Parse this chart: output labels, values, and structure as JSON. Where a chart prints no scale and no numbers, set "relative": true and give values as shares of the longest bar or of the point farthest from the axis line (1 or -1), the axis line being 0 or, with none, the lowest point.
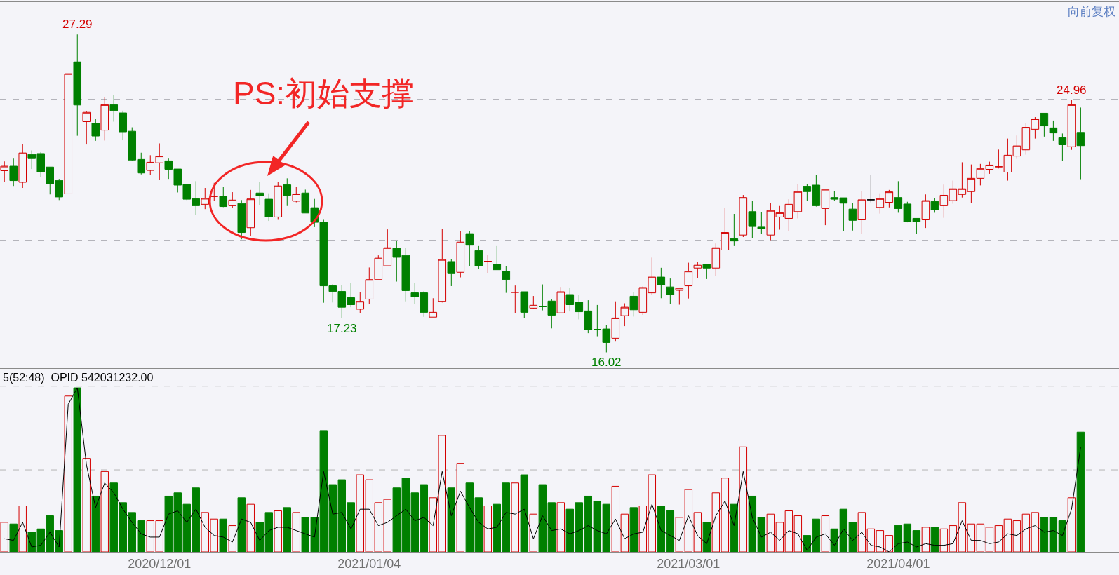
{
  "chart_data": [
    {
      "type": "candlestick",
      "categories": [
        null,
        null,
        null,
        null,
        null,
        null,
        null,
        null,
        null,
        null,
        null,
        null,
        null,
        null,
        null,
        null,
        null,
        "2020/12/01",
        null,
        null,
        null,
        null,
        null,
        null,
        null,
        null,
        null,
        null,
        null,
        null,
        null,
        null,
        null,
        null,
        null,
        null,
        null,
        null,
        null,
        null,
        "2021/01/04",
        null,
        null,
        null,
        null,
        null,
        null,
        null,
        null,
        null,
        null,
        null,
        null,
        null,
        null,
        null,
        null,
        null,
        null,
        null,
        null,
        null,
        null,
        null,
        null,
        null,
        null,
        null,
        null,
        null,
        null,
        null,
        null,
        null,
        null,
        "2021/03/01",
        null,
        null,
        null,
        null,
        null,
        null,
        null,
        null,
        null,
        null,
        null,
        null,
        null,
        null,
        null,
        null,
        null,
        null,
        null,
        null,
        null,
        null,
        "2021/04/01",
        null,
        null,
        null,
        null,
        null,
        null,
        null,
        null,
        null,
        null,
        null,
        null,
        null,
        null,
        null,
        null,
        null,
        null,
        null,
        null
      ],
      "ohlc": [
        [
          22.46,
          22.79,
          22.07,
          22.62
        ],
        [
          22.62,
          22.89,
          21.92,
          22.11
        ],
        [
          22.05,
          23.4,
          21.85,
          23.09
        ],
        [
          23.04,
          23.18,
          22.52,
          22.89
        ],
        [
          23.07,
          23.12,
          22.24,
          22.41
        ],
        [
          22.59,
          22.59,
          21.62,
          21.99
        ],
        [
          22.12,
          22.17,
          21.42,
          21.53
        ],
        [
          21.64,
          25.9,
          21.64,
          25.9
        ],
        [
          26.32,
          27.29,
          23.7,
          24.79
        ],
        [
          24.2,
          24.57,
          23.39,
          24.53
        ],
        [
          24.15,
          24.3,
          23.52,
          23.69
        ],
        [
          23.9,
          25.07,
          23.53,
          24.8
        ],
        [
          24.8,
          25.14,
          24.2,
          24.59
        ],
        [
          24.51,
          24.59,
          23.54,
          23.84
        ],
        [
          23.86,
          24.0,
          22.82,
          22.84
        ],
        [
          22.86,
          23.1,
          22.33,
          22.38
        ],
        [
          22.47,
          23.01,
          22.3,
          22.76
        ],
        [
          22.74,
          23.43,
          22.13,
          22.98
        ],
        [
          22.81,
          22.89,
          22.17,
          22.51
        ],
        [
          22.52,
          22.52,
          21.69,
          21.95
        ],
        [
          21.98,
          21.98,
          21.42,
          21.45
        ],
        [
          21.47,
          22.09,
          20.89,
          21.22
        ],
        [
          21.27,
          21.85,
          21.1,
          21.48
        ],
        [
          21.55,
          22.03,
          21.4,
          21.55
        ],
        [
          21.56,
          21.89,
          21.17,
          21.19
        ],
        [
          21.22,
          21.7,
          21.13,
          21.42
        ],
        [
          21.3,
          21.42,
          20.03,
          20.27
        ],
        [
          20.44,
          21.78,
          20.16,
          21.46
        ],
        [
          21.67,
          22.06,
          21.25,
          21.57
        ],
        [
          21.45,
          21.66,
          20.68,
          20.82
        ],
        [
          20.82,
          22.07,
          20.72,
          21.92
        ],
        [
          21.96,
          22.19,
          21.21,
          21.59
        ],
        [
          21.38,
          21.88,
          21.34,
          21.64
        ],
        [
          21.67,
          21.79,
          20.96,
          20.96
        ],
        [
          21.15,
          21.46,
          20.46,
          20.63
        ],
        [
          20.63,
          20.72,
          17.78,
          18.38
        ],
        [
          18.38,
          18.44,
          17.79,
          18.18
        ],
        [
          18.18,
          18.41,
          17.23,
          17.62
        ],
        [
          17.96,
          18.49,
          17.62,
          17.71
        ],
        [
          17.55,
          18.17,
          17.4,
          17.83
        ],
        [
          17.91,
          19.03,
          17.74,
          18.6
        ],
        [
          18.6,
          19.46,
          18.6,
          19.36
        ],
        [
          19.09,
          20.38,
          19.07,
          19.73
        ],
        [
          19.71,
          19.97,
          18.53,
          19.39
        ],
        [
          19.46,
          19.73,
          17.83,
          18.21
        ],
        [
          18.13,
          18.49,
          17.74,
          17.99
        ],
        [
          18.13,
          18.19,
          17.28,
          17.44
        ],
        [
          17.27,
          17.94,
          17.27,
          17.44
        ],
        [
          17.83,
          20.4,
          17.79,
          19.31
        ],
        [
          19.24,
          19.33,
          18.37,
          18.81
        ],
        [
          18.86,
          20.31,
          18.68,
          19.93
        ],
        [
          20.23,
          20.33,
          19.09,
          19.82
        ],
        [
          19.63,
          19.79,
          18.98,
          19.08
        ],
        [
          19.25,
          19.48,
          18.84,
          19.25
        ],
        [
          19.14,
          19.79,
          18.95,
          18.95
        ],
        [
          18.89,
          19.09,
          18.13,
          18.6
        ],
        [
          18.15,
          18.39,
          17.4,
          18.15
        ],
        [
          18.17,
          18.17,
          17.25,
          17.44
        ],
        [
          17.59,
          18.02,
          17.55,
          17.69
        ],
        [
          17.64,
          18.43,
          17.51,
          17.64
        ],
        [
          17.84,
          17.92,
          16.87,
          17.34
        ],
        [
          17.42,
          18.34,
          17.4,
          18.17
        ],
        [
          18.07,
          18.32,
          17.47,
          17.71
        ],
        [
          17.8,
          18.07,
          17.19,
          17.46
        ],
        [
          17.49,
          17.87,
          16.7,
          16.82
        ],
        [
          16.84,
          17.7,
          16.59,
          16.84
        ],
        [
          16.85,
          16.99,
          16.02,
          16.37
        ],
        [
          16.52,
          17.83,
          16.4,
          17.24
        ],
        [
          17.32,
          17.76,
          16.95,
          17.62
        ],
        [
          18.01,
          18.17,
          17.29,
          17.53
        ],
        [
          17.44,
          18.36,
          17.35,
          18.32
        ],
        [
          18.13,
          19.38,
          18.07,
          18.69
        ],
        [
          18.69,
          19.02,
          17.94,
          18.41
        ],
        [
          18.34,
          18.64,
          17.74,
          18.07
        ],
        [
          18.22,
          18.32,
          17.71,
          18.3
        ],
        [
          18.38,
          19.2,
          17.93,
          18.9
        ],
        [
          19.01,
          19.22,
          18.65,
          19.11
        ],
        [
          19.15,
          19.15,
          18.62,
          19.01
        ],
        [
          19.01,
          19.88,
          18.73,
          19.73
        ],
        [
          19.65,
          21.13,
          19.65,
          20.27
        ],
        [
          20.05,
          20.93,
          19.79,
          19.97
        ],
        [
          20.18,
          21.6,
          20.11,
          21.51
        ],
        [
          21.01,
          21.4,
          20.06,
          20.48
        ],
        [
          20.46,
          21.0,
          20.22,
          20.4
        ],
        [
          20.18,
          21.32,
          20.0,
          21.05
        ],
        [
          20.82,
          21.21,
          20.37,
          20.97
        ],
        [
          20.77,
          21.45,
          20.33,
          21.27
        ],
        [
          21.01,
          22.0,
          20.77,
          21.72
        ],
        [
          21.91,
          22.0,
          21.4,
          21.72
        ],
        [
          21.95,
          22.32,
          21.19,
          21.22
        ],
        [
          21.12,
          21.8,
          20.53,
          21.8
        ],
        [
          21.51,
          21.73,
          21.38,
          21.45
        ],
        [
          21.5,
          21.5,
          20.33,
          21.31
        ],
        [
          21.1,
          21.31,
          20.34,
          20.7
        ],
        [
          20.72,
          21.75,
          20.22,
          21.43
        ],
        [
          21.43,
          22.3,
          21.34,
          21.43
        ],
        [
          21.16,
          21.66,
          20.94,
          21.47
        ],
        [
          21.34,
          21.78,
          21.16,
          21.71
        ],
        [
          21.51,
          22.09,
          20.97,
          21.12
        ],
        [
          21.28,
          21.36,
          20.63,
          20.65
        ],
        [
          20.77,
          20.77,
          20.22,
          20.65
        ],
        [
          20.72,
          21.62,
          20.43,
          21.4
        ],
        [
          21.37,
          21.49,
          20.97,
          21.07
        ],
        [
          21.22,
          21.97,
          20.79,
          21.59
        ],
        [
          21.4,
          22.11,
          21.29,
          21.82
        ],
        [
          21.62,
          22.76,
          21.51,
          21.82
        ],
        [
          21.72,
          22.68,
          21.31,
          22.19
        ],
        [
          22.19,
          22.7,
          21.94,
          22.54
        ],
        [
          22.51,
          22.78,
          22.35,
          22.66
        ],
        [
          22.6,
          23.21,
          22.54,
          22.6
        ],
        [
          22.41,
          23.6,
          22.11,
          23.01
        ],
        [
          22.98,
          23.71,
          22.88,
          23.34
        ],
        [
          23.2,
          24.15,
          23.03,
          24.0
        ],
        [
          23.93,
          24.36,
          23.6,
          24.3
        ],
        [
          24.5,
          24.5,
          23.67,
          24.05
        ],
        [
          23.98,
          24.24,
          23.52,
          23.8
        ],
        [
          23.63,
          23.78,
          22.81,
          23.38
        ],
        [
          23.31,
          24.96,
          23.2,
          24.8
        ],
        [
          23.82,
          24.7,
          22.16,
          23.35
        ]
      ],
      "colors": [
        "#d40000",
        "#008000",
        "#d40000",
        "#008000",
        "#008000",
        "#008000",
        "#008000",
        "#d40000",
        "#008000",
        "#d40000",
        "#008000",
        "#d40000",
        "#008000",
        "#008000",
        "#008000",
        "#008000",
        "#d40000",
        "#d40000",
        "#008000",
        "#008000",
        "#008000",
        "#008000",
        "#d40000",
        "#d40000",
        "#008000",
        "#d40000",
        "#008000",
        "#d40000",
        "#008000",
        "#008000",
        "#d40000",
        "#008000",
        "#d40000",
        "#008000",
        "#008000",
        "#008000",
        "#008000",
        "#008000",
        "#008000",
        "#d40000",
        "#d40000",
        "#d40000",
        "#d40000",
        "#008000",
        "#008000",
        "#008000",
        "#008000",
        "#d40000",
        "#d40000",
        "#008000",
        "#d40000",
        "#008000",
        "#008000",
        "#d40000",
        "#008000",
        "#008000",
        "#d40000",
        "#008000",
        "#d40000",
        "#008000",
        "#008000",
        "#d40000",
        "#008000",
        "#008000",
        "#008000",
        "#008000",
        "#008000",
        "#d40000",
        "#d40000",
        "#008000",
        "#d40000",
        "#d40000",
        "#008000",
        "#008000",
        "#d40000",
        "#d40000",
        "#d40000",
        "#008000",
        "#d40000",
        "#d40000",
        "#008000",
        "#d40000",
        "#008000",
        "#008000",
        "#d40000",
        "#d40000",
        "#d40000",
        "#d40000",
        "#008000",
        "#008000",
        "#d40000",
        "#008000",
        "#008000",
        "#008000",
        "#d40000",
        "#000000",
        "#d40000",
        "#d40000",
        "#008000",
        "#008000",
        "#008000",
        "#d40000",
        "#008000",
        "#d40000",
        "#d40000",
        "#d40000",
        "#d40000",
        "#d40000",
        "#d40000",
        "#d40000",
        "#d40000",
        "#d40000",
        "#d40000",
        "#d40000",
        "#008000",
        "#008000",
        "#008000",
        "#d40000",
        "#008000"
      ],
      "ylim": [
        15.46,
        28.44
      ],
      "yticks": [
        {
          "value": 20,
          "label": null
        },
        {
          "value": 25,
          "label": null
        }
      ],
      "grid": "y",
      "tick_labels": false,
      "annotations": [
        "向前复权",
        "PS:初始支撑",
        {
          "text": "27.29",
          "y": 27.29
        },
        {
          "text": "24.96",
          "y": 24.96
        },
        {
          "text": "17.23",
          "y": 17.23
        },
        {
          "text": "16.02",
          "y": 16.02
        }
      ]
    },
    {
      "type": "bar",
      "relative": true,
      "title": "5(52:48)  OPID 542031232.00",
      "categories": [
        null,
        null,
        null,
        null,
        null,
        null,
        null,
        null,
        null,
        null,
        null,
        null,
        null,
        null,
        null,
        null,
        null,
        "2020/12/01",
        null,
        null,
        null,
        null,
        null,
        null,
        null,
        null,
        null,
        null,
        null,
        null,
        null,
        null,
        null,
        null,
        null,
        null,
        null,
        null,
        null,
        null,
        "2021/01/04",
        null,
        null,
        null,
        null,
        null,
        null,
        null,
        null,
        null,
        null,
        null,
        null,
        null,
        null,
        null,
        null,
        null,
        null,
        null,
        null,
        null,
        null,
        null,
        null,
        null,
        null,
        null,
        null,
        null,
        null,
        null,
        null,
        null,
        null,
        "2021/03/01",
        null,
        null,
        null,
        null,
        null,
        null,
        null,
        null,
        null,
        null,
        null,
        null,
        null,
        null,
        null,
        null,
        null,
        null,
        null,
        null,
        null,
        null,
        "2021/04/01",
        null,
        null,
        null,
        null,
        null,
        null,
        null,
        null,
        null,
        null,
        null,
        null,
        null,
        null,
        null,
        null,
        null,
        null,
        null,
        null
      ],
      "series": [
        {
          "colors": [
            "#d40000",
            "#008000",
            "#d40000",
            "#008000",
            "#008000",
            "#008000",
            "#008000",
            "#d40000",
            "#008000",
            "#d40000",
            "#008000",
            "#d40000",
            "#008000",
            "#008000",
            "#008000",
            "#008000",
            "#d40000",
            "#d40000",
            "#008000",
            "#008000",
            "#008000",
            "#008000",
            "#d40000",
            "#d40000",
            "#008000",
            "#d40000",
            "#008000",
            "#d40000",
            "#008000",
            "#008000",
            "#d40000",
            "#008000",
            "#d40000",
            "#008000",
            "#008000",
            "#008000",
            "#008000",
            "#008000",
            "#008000",
            "#d40000",
            "#d40000",
            "#d40000",
            "#d40000",
            "#008000",
            "#008000",
            "#008000",
            "#008000",
            "#d40000",
            "#d40000",
            "#008000",
            "#d40000",
            "#008000",
            "#008000",
            "#d40000",
            "#008000",
            "#008000",
            "#d40000",
            "#008000",
            "#d40000",
            "#008000",
            "#008000",
            "#d40000",
            "#008000",
            "#008000",
            "#008000",
            "#008000",
            "#008000",
            "#d40000",
            "#d40000",
            "#008000",
            "#d40000",
            "#d40000",
            "#008000",
            "#008000",
            "#d40000",
            "#d40000",
            "#d40000",
            "#008000",
            "#d40000",
            "#d40000",
            "#008000",
            "#d40000",
            "#008000",
            "#008000",
            "#d40000",
            "#d40000",
            "#d40000",
            "#d40000",
            "#008000",
            "#008000",
            "#d40000",
            "#008000",
            "#008000",
            "#008000",
            "#d40000",
            "#d40000",
            "#d40000",
            "#d40000",
            "#008000",
            "#008000",
            "#008000",
            "#d40000",
            "#008000",
            "#d40000",
            "#d40000",
            "#d40000",
            "#d40000",
            "#d40000",
            "#d40000",
            "#d40000",
            "#d40000",
            "#d40000",
            "#d40000",
            "#d40000",
            "#008000",
            "#008000",
            "#008000",
            "#d40000",
            "#008000"
          ],
          "values": [
            0.18,
            0.17,
            0.28,
            0.12,
            0.14,
            0.22,
            0.13,
            0.95,
            1,
            0.57,
            0.34,
            0.49,
            0.42,
            0.3,
            0.24,
            0.19,
            0.19,
            0.19,
            0.34,
            0.36,
            0.29,
            0.39,
            0.24,
            0.2,
            0.2,
            0.16,
            0.33,
            0.29,
            0.18,
            0.24,
            0.25,
            0.27,
            0.24,
            0.21,
            0.21,
            0.74,
            0.41,
            0.44,
            0.3,
            0.47,
            0.44,
            0.3,
            0.32,
            0.39,
            0.45,
            0.36,
            0.41,
            0.33,
            0.71,
            0.39,
            0.54,
            0.42,
            0.33,
            0.28,
            0.29,
            0.42,
            0.42,
            0.47,
            0.23,
            0.41,
            0.3,
            0.3,
            0.26,
            0.3,
            0.34,
            0.31,
            0.29,
            0.4,
            0.23,
            0.27,
            0.28,
            0.47,
            0.28,
            0.25,
            0.21,
            0.38,
            0.24,
            0.18,
            0.36,
            0.45,
            0.29,
            0.64,
            0.34,
            0.21,
            0.23,
            0.18,
            0.25,
            0.22,
            0.1,
            0.2,
            0.22,
            0.14,
            0.26,
            0.18,
            0.24,
            0.14,
            0.13,
            0.1,
            0.16,
            0.17,
            0.13,
            0.15,
            0.15,
            0.14,
            0.16,
            0.3,
            0.17,
            0.17,
            0.15,
            0.16,
            0.2,
            0.19,
            0.23,
            0.24,
            0.21,
            0.21,
            0.19,
            0.33,
            0.73
          ]
        },
        {
          "type": "line",
          "color": "#000000",
          "values": [
            0.08,
            0.07,
            0.18,
            0.03,
            0.04,
            0.12,
            0.03,
            0.9,
            1,
            0.53,
            0.27,
            0.42,
            0.36,
            0.26,
            0.18,
            0.11,
            0.09,
            0.09,
            0.23,
            0.25,
            0.18,
            0.26,
            0.15,
            0.1,
            0.09,
            0.06,
            0.2,
            0.18,
            0.07,
            0.13,
            0.15,
            0.15,
            0.13,
            0.11,
            0.09,
            0.49,
            0.23,
            0.24,
            0.14,
            0.26,
            0.26,
            0.16,
            0.18,
            0.22,
            0.26,
            0.19,
            0.21,
            0.16,
            0.49,
            0.22,
            0.37,
            0.27,
            0.18,
            0.14,
            0.15,
            0.24,
            0.23,
            0.26,
            0.08,
            0.22,
            0.13,
            0.14,
            0.11,
            0.13,
            0.16,
            0.13,
            0.11,
            0.2,
            0.08,
            0.11,
            0.12,
            0.29,
            0.13,
            0.1,
            0.07,
            0.22,
            0.1,
            0.05,
            0.22,
            0.31,
            0.16,
            0.49,
            0.21,
            0.09,
            0.12,
            0.07,
            0.13,
            0.11,
            0.01,
            0.09,
            0.11,
            0.04,
            0.14,
            0.07,
            0.12,
            0.04,
            0.03,
            0,
            0.05,
            0.06,
            0.03,
            0.05,
            0.04,
            0.04,
            0.05,
            0.19,
            0.07,
            0.07,
            0.05,
            0.06,
            0.11,
            0.1,
            0.14,
            0.16,
            0.12,
            0.13,
            0.1,
            0.26,
            0.64
          ]
        }
      ],
      "ref_lines": [
        {
          "axis": "y",
          "value": 1.01,
          "color": "#b4b4b4",
          "line_style": "dashed"
        },
        {
          "axis": "y",
          "value": 0.5,
          "color": "#b4b4b4",
          "line_style": "dashed"
        }
      ],
      "tick_labels": "x"
    }
  ]
}
